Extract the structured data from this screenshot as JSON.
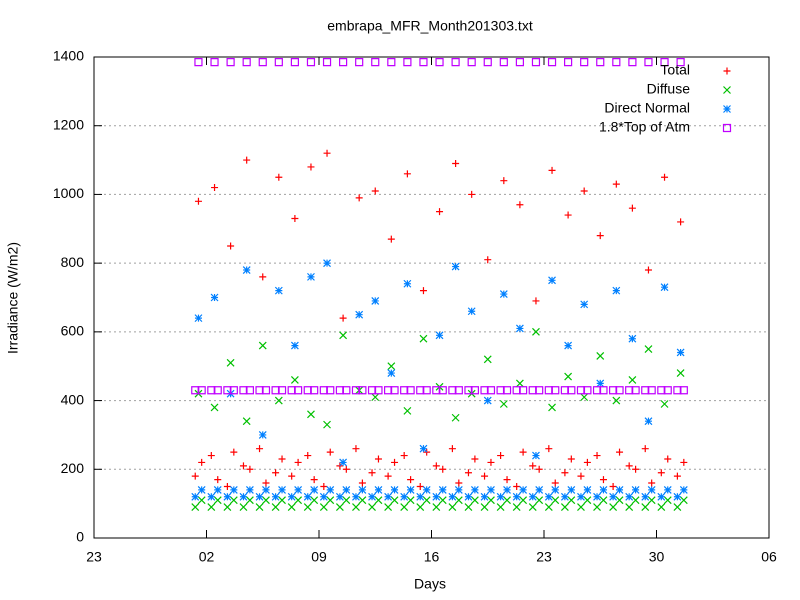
{
  "chart_data": {
    "type": "scatter",
    "title": "embrapa_MFR_Month201303.txt",
    "x_label": "Days",
    "y_label": "Irradiance (W/m2)",
    "xlim": [
      0,
      42
    ],
    "xticks": [
      {
        "value": 0,
        "label": "23"
      },
      {
        "value": 7,
        "label": "02"
      },
      {
        "value": 14,
        "label": "09"
      },
      {
        "value": 21,
        "label": "16"
      },
      {
        "value": 28,
        "label": "23"
      },
      {
        "value": 35,
        "label": "30"
      },
      {
        "value": 42,
        "label": "06"
      }
    ],
    "ylim": [
      0,
      1400
    ],
    "yticks": [
      0,
      200,
      400,
      600,
      800,
      1000,
      1200,
      1400
    ],
    "grid": true,
    "legend": "top-right",
    "x": [
      6.3,
      6.5,
      6.7,
      7.3,
      7.5,
      7.7,
      8.3,
      8.5,
      8.7,
      9.3,
      9.5,
      9.7,
      10.3,
      10.5,
      10.7,
      11.3,
      11.5,
      11.7,
      12.3,
      12.5,
      12.7,
      13.3,
      13.5,
      13.7,
      14.3,
      14.5,
      14.7,
      15.3,
      15.5,
      15.7,
      16.3,
      16.5,
      16.7,
      17.3,
      17.5,
      17.7,
      18.3,
      18.5,
      18.7,
      19.3,
      19.5,
      19.7,
      20.3,
      20.5,
      20.7,
      21.3,
      21.5,
      21.7,
      22.3,
      22.5,
      22.7,
      23.3,
      23.5,
      23.7,
      24.3,
      24.5,
      24.7,
      25.3,
      25.5,
      25.7,
      26.3,
      26.5,
      26.7,
      27.3,
      27.5,
      27.7,
      28.3,
      28.5,
      28.7,
      29.3,
      29.5,
      29.7,
      30.3,
      30.5,
      30.7,
      31.3,
      31.5,
      31.7,
      32.3,
      32.5,
      32.7,
      33.3,
      33.5,
      33.7,
      34.3,
      34.5,
      34.7,
      35.3,
      35.5,
      35.7,
      36.3,
      36.5,
      36.7
    ],
    "series": [
      {
        "name": "Total",
        "color": "#ff0000",
        "marker": "plus",
        "values": [
          180,
          980,
          220,
          240,
          1020,
          170,
          150,
          850,
          250,
          210,
          1100,
          200,
          260,
          760,
          160,
          190,
          1050,
          230,
          180,
          930,
          220,
          240,
          1080,
          170,
          150,
          1120,
          250,
          210,
          640,
          200,
          260,
          990,
          160,
          190,
          1010,
          230,
          180,
          870,
          220,
          240,
          1060,
          170,
          150,
          720,
          250,
          210,
          950,
          200,
          260,
          1090,
          160,
          190,
          1000,
          230,
          180,
          810,
          220,
          240,
          1040,
          170,
          150,
          970,
          250,
          210,
          690,
          200,
          260,
          1070,
          160,
          190,
          940,
          230,
          180,
          1010,
          220,
          240,
          880,
          170,
          150,
          1030,
          250,
          210,
          960,
          200,
          260,
          780,
          160,
          190,
          1050,
          230,
          180,
          920,
          220
        ]
      },
      {
        "name": "Diffuse",
        "color": "#00c000",
        "marker": "cross",
        "values": [
          90,
          420,
          110,
          90,
          380,
          110,
          90,
          510,
          110,
          90,
          340,
          110,
          90,
          560,
          110,
          90,
          400,
          110,
          90,
          460,
          110,
          90,
          360,
          110,
          90,
          330,
          110,
          90,
          590,
          110,
          90,
          430,
          110,
          90,
          410,
          110,
          90,
          500,
          110,
          90,
          370,
          110,
          90,
          580,
          110,
          90,
          440,
          110,
          90,
          350,
          110,
          90,
          420,
          110,
          90,
          520,
          110,
          90,
          390,
          110,
          90,
          450,
          110,
          90,
          600,
          110,
          90,
          380,
          110,
          90,
          470,
          110,
          90,
          410,
          110,
          90,
          530,
          110,
          90,
          400,
          110,
          90,
          460,
          110,
          90,
          550,
          110,
          90,
          390,
          110,
          90,
          480,
          110
        ]
      },
      {
        "name": "Direct Normal",
        "color": "#0080ff",
        "marker": "star",
        "values": [
          120,
          640,
          140,
          120,
          700,
          140,
          120,
          420,
          140,
          120,
          780,
          140,
          120,
          300,
          140,
          120,
          720,
          140,
          120,
          560,
          140,
          120,
          760,
          140,
          120,
          800,
          140,
          120,
          220,
          140,
          120,
          650,
          140,
          120,
          690,
          140,
          120,
          480,
          140,
          120,
          740,
          140,
          120,
          260,
          140,
          120,
          590,
          140,
          120,
          790,
          140,
          120,
          660,
          140,
          120,
          400,
          140,
          120,
          710,
          140,
          120,
          610,
          140,
          120,
          240,
          140,
          120,
          750,
          140,
          120,
          560,
          140,
          120,
          680,
          140,
          120,
          450,
          140,
          120,
          720,
          140,
          120,
          580,
          140,
          120,
          340,
          140,
          120,
          730,
          140,
          120,
          540,
          140
        ]
      },
      {
        "name": "1.8*Top of Atm",
        "color": "#c000ff",
        "marker": "square",
        "values": [
          430,
          1385,
          430,
          430,
          1385,
          430,
          430,
          1385,
          430,
          430,
          1385,
          430,
          430,
          1385,
          430,
          430,
          1385,
          430,
          430,
          1385,
          430,
          430,
          1385,
          430,
          430,
          1385,
          430,
          430,
          1385,
          430,
          430,
          1385,
          430,
          430,
          1385,
          430,
          430,
          1385,
          430,
          430,
          1385,
          430,
          430,
          1385,
          430,
          430,
          1385,
          430,
          430,
          1385,
          430,
          430,
          1385,
          430,
          430,
          1385,
          430,
          430,
          1385,
          430,
          430,
          1385,
          430,
          430,
          1385,
          430,
          430,
          1385,
          430,
          430,
          1385,
          430,
          430,
          1385,
          430,
          430,
          1385,
          430,
          430,
          1385,
          430,
          430,
          1385,
          430,
          430,
          1385,
          430,
          430,
          1385,
          430,
          430,
          1385,
          430
        ]
      }
    ]
  }
}
